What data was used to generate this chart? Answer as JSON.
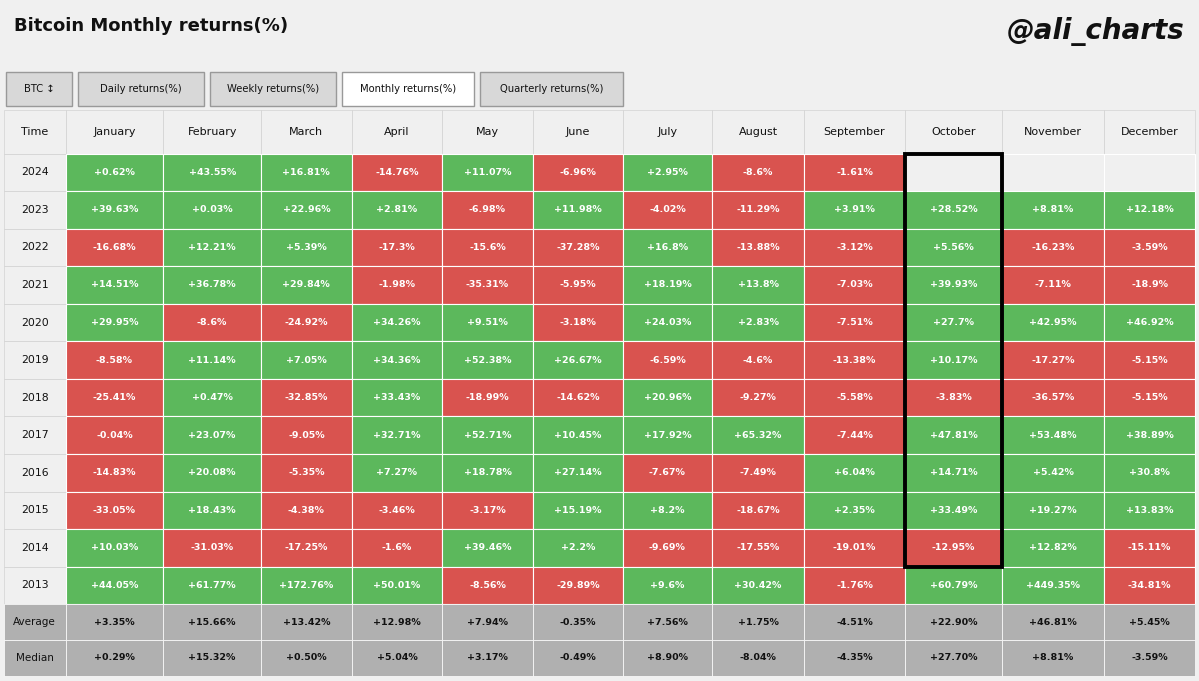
{
  "title": "Bitcoin Monthly returns(%)",
  "watermark": "@ali_charts",
  "tabs": [
    "BTC ↕",
    "Daily returns(%)",
    "Weekly returns(%)",
    "Monthly returns(%)",
    "Quarterly returns(%)"
  ],
  "active_tab": "Monthly returns(%)",
  "columns": [
    "Time",
    "January",
    "February",
    "March",
    "April",
    "May",
    "June",
    "July",
    "August",
    "September",
    "October",
    "November",
    "December"
  ],
  "rows": [
    {
      "year": "2024",
      "values": [
        "+0.62%",
        "+43.55%",
        "+16.81%",
        "-14.76%",
        "+11.07%",
        "-6.96%",
        "+2.95%",
        "-8.6%",
        "-1.61%",
        null,
        null,
        null
      ]
    },
    {
      "year": "2023",
      "values": [
        "+39.63%",
        "+0.03%",
        "+22.96%",
        "+2.81%",
        "-6.98%",
        "+11.98%",
        "-4.02%",
        "-11.29%",
        "+3.91%",
        "+28.52%",
        "+8.81%",
        "+12.18%"
      ]
    },
    {
      "year": "2022",
      "values": [
        "-16.68%",
        "+12.21%",
        "+5.39%",
        "-17.3%",
        "-15.6%",
        "-37.28%",
        "+16.8%",
        "-13.88%",
        "-3.12%",
        "+5.56%",
        "-16.23%",
        "-3.59%"
      ]
    },
    {
      "year": "2021",
      "values": [
        "+14.51%",
        "+36.78%",
        "+29.84%",
        "-1.98%",
        "-35.31%",
        "-5.95%",
        "+18.19%",
        "+13.8%",
        "-7.03%",
        "+39.93%",
        "-7.11%",
        "-18.9%"
      ]
    },
    {
      "year": "2020",
      "values": [
        "+29.95%",
        "-8.6%",
        "-24.92%",
        "+34.26%",
        "+9.51%",
        "-3.18%",
        "+24.03%",
        "+2.83%",
        "-7.51%",
        "+27.7%",
        "+42.95%",
        "+46.92%"
      ]
    },
    {
      "year": "2019",
      "values": [
        "-8.58%",
        "+11.14%",
        "+7.05%",
        "+34.36%",
        "+52.38%",
        "+26.67%",
        "-6.59%",
        "-4.6%",
        "-13.38%",
        "+10.17%",
        "-17.27%",
        "-5.15%"
      ]
    },
    {
      "year": "2018",
      "values": [
        "-25.41%",
        "+0.47%",
        "-32.85%",
        "+33.43%",
        "-18.99%",
        "-14.62%",
        "+20.96%",
        "-9.27%",
        "-5.58%",
        "-3.83%",
        "-36.57%",
        "-5.15%"
      ]
    },
    {
      "year": "2017",
      "values": [
        "-0.04%",
        "+23.07%",
        "-9.05%",
        "+32.71%",
        "+52.71%",
        "+10.45%",
        "+17.92%",
        "+65.32%",
        "-7.44%",
        "+47.81%",
        "+53.48%",
        "+38.89%"
      ]
    },
    {
      "year": "2016",
      "values": [
        "-14.83%",
        "+20.08%",
        "-5.35%",
        "+7.27%",
        "+18.78%",
        "+27.14%",
        "-7.67%",
        "-7.49%",
        "+6.04%",
        "+14.71%",
        "+5.42%",
        "+30.8%"
      ]
    },
    {
      "year": "2015",
      "values": [
        "-33.05%",
        "+18.43%",
        "-4.38%",
        "-3.46%",
        "-3.17%",
        "+15.19%",
        "+8.2%",
        "-18.67%",
        "+2.35%",
        "+33.49%",
        "+19.27%",
        "+13.83%"
      ]
    },
    {
      "year": "2014",
      "values": [
        "+10.03%",
        "-31.03%",
        "-17.25%",
        "-1.6%",
        "+39.46%",
        "+2.2%",
        "-9.69%",
        "-17.55%",
        "-19.01%",
        "-12.95%",
        "+12.82%",
        "-15.11%"
      ]
    },
    {
      "year": "2013",
      "values": [
        "+44.05%",
        "+61.77%",
        "+172.76%",
        "+50.01%",
        "-8.56%",
        "-29.89%",
        "+9.6%",
        "+30.42%",
        "-1.76%",
        "+60.79%",
        "+449.35%",
        "-34.81%"
      ]
    }
  ],
  "average": [
    "+3.35%",
    "+15.66%",
    "+13.42%",
    "+12.98%",
    "+7.94%",
    "-0.35%",
    "+7.56%",
    "+1.75%",
    "-4.51%",
    "+22.90%",
    "+46.81%",
    "+5.45%"
  ],
  "median": [
    "+0.29%",
    "+15.32%",
    "+0.50%",
    "+5.04%",
    "+3.17%",
    "-0.49%",
    "+8.90%",
    "-8.04%",
    "-4.35%",
    "+27.70%",
    "+8.81%",
    "-3.59%"
  ],
  "green_color": "#5cb85c",
  "red_color": "#d9534f",
  "bg_color": "#f0f0f0",
  "avg_median_bg": "#b0b0b0",
  "cell_text_color": "#ffffff",
  "header_text_color": "#111111",
  "october_border_color": "#000000",
  "tab_active_bg": "#ffffff",
  "tab_inactive_bg": "#d8d8d8",
  "row_sep_color": "#ffffff",
  "col_sep_color": "#ffffff"
}
